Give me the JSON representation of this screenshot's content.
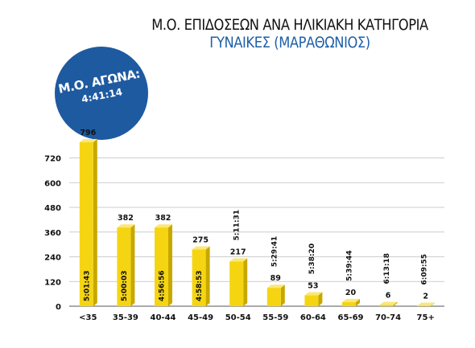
{
  "header": {
    "title": "Μ.Ο. ΕΠΙΔΟΣΕΩΝ ΑΝΑ ΗΛΙΚΙΑΚΗ ΚΑΤΗΓΟΡΙΑ",
    "subtitle": "ΓΥΝΑΙΚΕΣ (ΜΑΡΑΘΩΝΙΟΣ)"
  },
  "badge": {
    "label": "Μ.Ο. ΑΓΩΝΑ:",
    "value": "4:41:14"
  },
  "colors": {
    "bar_front": "#f5d512",
    "bar_top": "#fbe77a",
    "bar_side": "#c7a800",
    "badge": "#1e5aa0",
    "subtitle": "#1e5fa8"
  },
  "chart_data": {
    "type": "bar",
    "categories": [
      "<35",
      "35-39",
      "40-44",
      "45-49",
      "50-54",
      "55-59",
      "60-64",
      "65-69",
      "70-74",
      "75+"
    ],
    "values": [
      796,
      382,
      382,
      275,
      217,
      89,
      53,
      20,
      6,
      2
    ],
    "times": [
      "5:01:43",
      "5:00:03",
      "4:56:56",
      "4:58:53",
      "5:11:31",
      "5:29:41",
      "5:38:20",
      "5:39:44",
      "6:13:18",
      "6:09:55"
    ],
    "yticks": [
      0,
      120,
      240,
      360,
      480,
      600,
      720
    ],
    "ylim": [
      0,
      800
    ],
    "grid": true
  }
}
